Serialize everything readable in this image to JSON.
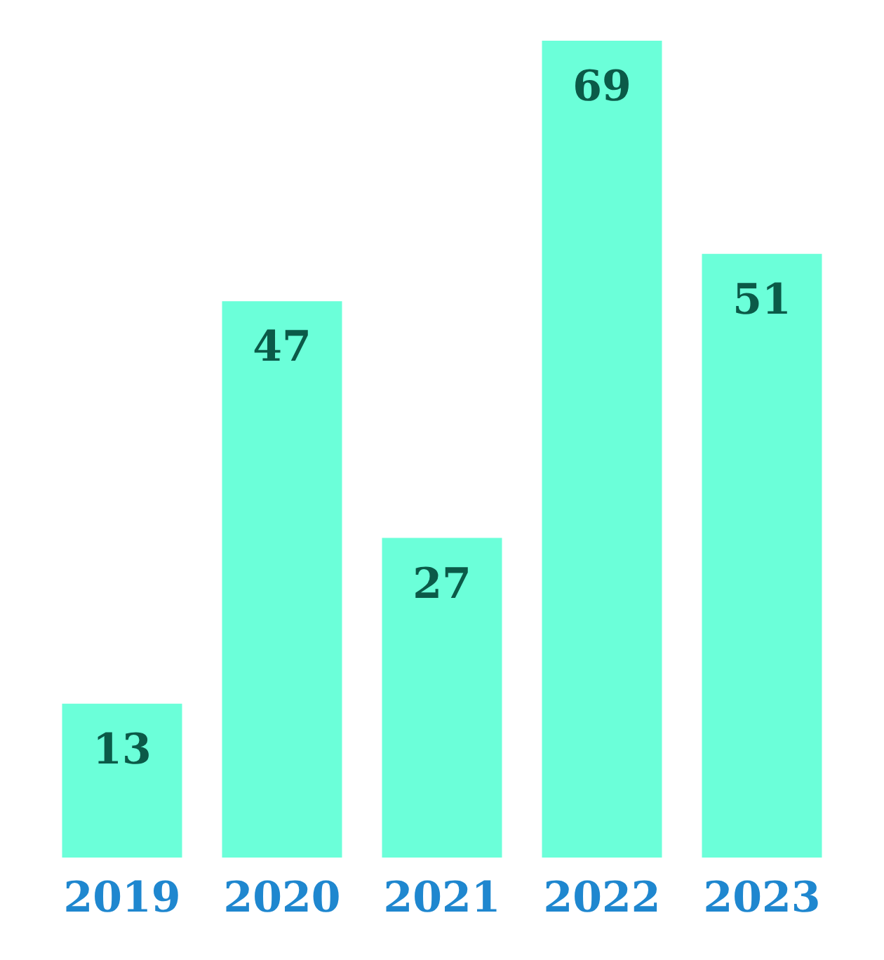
{
  "chart_data": {
    "type": "bar",
    "categories": [
      "2019",
      "2020",
      "2021",
      "2022",
      "2023"
    ],
    "values": [
      13,
      47,
      27,
      69,
      51
    ],
    "color": "#6bffd9",
    "data_labels": true
  }
}
